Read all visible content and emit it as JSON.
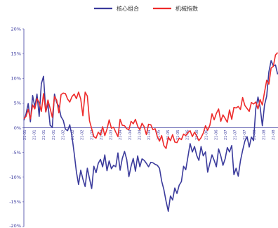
{
  "chart_data": {
    "type": "line",
    "ylim": [
      -20,
      20
    ],
    "y_ticks": [
      {
        "value": 20,
        "label": "20%"
      },
      {
        "value": 15,
        "label": "15%"
      },
      {
        "value": 10,
        "label": "10%"
      },
      {
        "value": 5,
        "label": "5%"
      },
      {
        "value": 0,
        "label": "0%"
      },
      {
        "value": -5,
        "label": "-5%"
      },
      {
        "value": -10,
        "label": "-10%"
      },
      {
        "value": -15,
        "label": "-15%"
      },
      {
        "value": -20,
        "label": "-20%"
      }
    ],
    "x_tick_labels": [
      "21-01",
      "21-01",
      "21-01",
      "21-01",
      "21-02",
      "21-02",
      "21-02",
      "21-03",
      "21-03",
      "21-03",
      "21-04",
      "21-04",
      "21-04",
      "21-04",
      "21-05",
      "21-05",
      "21-05",
      "21-06",
      "21-06",
      "21-06",
      "21-06",
      "21-07",
      "21-07",
      "21-07",
      "21-08",
      "21-08",
      "21-08"
    ],
    "legend_position": "top-center",
    "grid": false,
    "series": [
      {
        "name": "核心组合",
        "color": "#3b3b9c",
        "values": [
          1.5,
          2.8,
          4.9,
          1.2,
          6.5,
          4.2,
          6.8,
          2.3,
          8.9,
          10.4,
          3.2,
          4.8,
          0.5,
          0.1,
          6.8,
          5.1,
          4.3,
          2.2,
          1.5,
          -0.3,
          -0.6,
          0.6,
          -1.8,
          -5.2,
          -8.9,
          -11.5,
          -8.6,
          -10.4,
          -11.9,
          -8.2,
          -10.3,
          -12.3,
          -7.8,
          -9.1,
          -7.2,
          -6.4,
          -7.9,
          -5.5,
          -8.7,
          -6.7,
          -8.3,
          -7.6,
          -7.9,
          -5.1,
          -8.6,
          -6.2,
          -4.8,
          -6.4,
          -9.9,
          -7.8,
          -6.2,
          -8.8,
          -5.7,
          -7.9,
          -6.3,
          -6.6,
          -7.2,
          -7.9,
          -7.0,
          -7.1,
          -7.4,
          -7.6,
          -8.2,
          -10.8,
          -12.5,
          -14.9,
          -16.9,
          -13.8,
          -14.6,
          -12.2,
          -13.3,
          -11.6,
          -10.9,
          -7.8,
          -8.5,
          -5.9,
          -3.2,
          -4.9,
          -3.8,
          -5.6,
          -6.6,
          -3.8,
          -5.7,
          -4.9,
          -9.0,
          -7.2,
          -5.5,
          -6.6,
          -7.9,
          -4.3,
          -5.7,
          -7.6,
          -6.3,
          -4.0,
          -4.9,
          -3.6,
          -9.5,
          -8.2,
          -9.8,
          -6.7,
          -4.6,
          -2.7,
          -1.8,
          -3.9,
          -1.9,
          -2.6,
          3.8,
          6.2,
          4.1,
          0.4,
          4.6,
          6.4,
          11.3,
          13.6,
          12.5,
          12.7,
          10.8
        ]
      },
      {
        "name": "机械指数",
        "color": "#ee2b2b",
        "values": [
          1.8,
          2.3,
          3.7,
          1.8,
          4.6,
          3.8,
          5.9,
          5.1,
          3.3,
          6.9,
          3.2,
          5.6,
          3.9,
          2.1,
          6.3,
          5.6,
          3.0,
          6.7,
          7.0,
          6.9,
          5.8,
          5.2,
          6.3,
          6.8,
          5.9,
          7.2,
          5.8,
          2.4,
          7.2,
          6.4,
          1.4,
          -0.2,
          -1.8,
          -2.1,
          -0.9,
          -1.5,
          0.2,
          -1.6,
          -0.3,
          1.6,
          -0.1,
          0.1,
          -0.9,
          -1.8,
          1.7,
          0.5,
          0.4,
          -0.2,
          -0.4,
          1.3,
          0.8,
          1.7,
          0.3,
          -0.4,
          0.9,
          0.2,
          -1.4,
          0.7,
          0.6,
          -0.4,
          -0.2,
          -1.8,
          -2.7,
          -1.6,
          -3.6,
          -4.2,
          -1.9,
          -2.6,
          -1.4,
          -2.9,
          -3.0,
          -2.1,
          -2.4,
          -1.3,
          -1.6,
          -1.0,
          -0.6,
          -1.8,
          -0.9,
          -1.7,
          -2.6,
          -2.0,
          -1.1,
          0.4,
          -0.5,
          0.5,
          2.8,
          1.6,
          2.9,
          3.8,
          1.3,
          2.6,
          1.9,
          1.1,
          3.6,
          1.7,
          4.1,
          4.0,
          4.3,
          3.7,
          6.1,
          4.5,
          3.9,
          3.3,
          5.1,
          4.8,
          5.2,
          3.8,
          5.7,
          4.6,
          7.2,
          9.6,
          8.8,
          12.1,
          12.4,
          14.7,
          15.2
        ]
      }
    ]
  }
}
